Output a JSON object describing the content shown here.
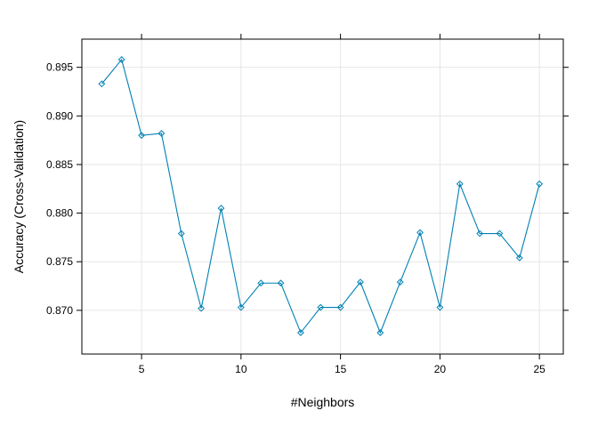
{
  "chart_data": {
    "type": "line",
    "title": "",
    "xlabel": "#Neighbors",
    "ylabel": "Accuracy (Cross-Validation)",
    "xlim": [
      2,
      26.2
    ],
    "ylim": [
      0.8655,
      0.8979
    ],
    "x_ticks": [
      5,
      10,
      15,
      20,
      25
    ],
    "x_tick_labels": [
      "5",
      "10",
      "15",
      "20",
      "25"
    ],
    "y_ticks": [
      0.87,
      0.875,
      0.88,
      0.885,
      0.89,
      0.895
    ],
    "y_tick_labels": [
      "0.870",
      "0.875",
      "0.880",
      "0.885",
      "0.890",
      "0.895"
    ],
    "grid": true,
    "legend": "none",
    "series": [
      {
        "color": "#0080b3",
        "marker": "diamond",
        "x": [
          3,
          4,
          5,
          6,
          7,
          8,
          9,
          10,
          11,
          12,
          13,
          14,
          15,
          16,
          17,
          18,
          19,
          20,
          21,
          22,
          23,
          24,
          25
        ],
        "y": [
          0.8933,
          0.8958,
          0.888,
          0.8882,
          0.8779,
          0.8702,
          0.8805,
          0.8703,
          0.8728,
          0.8728,
          0.8677,
          0.8703,
          0.8703,
          0.8729,
          0.8677,
          0.8729,
          0.878,
          0.8703,
          0.883,
          0.8779,
          0.8779,
          0.8754,
          0.883
        ]
      }
    ]
  }
}
